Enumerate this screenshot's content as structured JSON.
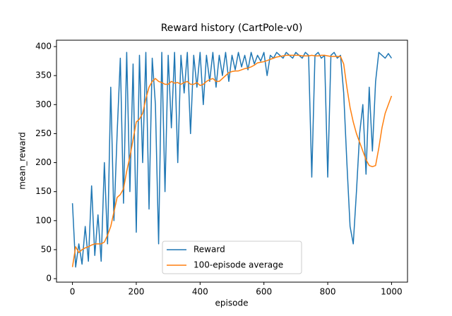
{
  "chart_data": {
    "type": "line",
    "title": "Reward history (CartPole-v0)",
    "xlabel": "episode",
    "ylabel": "mean_reward",
    "x": [
      0,
      10,
      20,
      30,
      40,
      50,
      60,
      70,
      80,
      90,
      100,
      110,
      120,
      130,
      140,
      150,
      160,
      170,
      180,
      190,
      200,
      210,
      220,
      230,
      240,
      250,
      260,
      270,
      280,
      290,
      300,
      310,
      320,
      330,
      340,
      350,
      360,
      370,
      380,
      390,
      400,
      410,
      420,
      430,
      440,
      450,
      460,
      470,
      480,
      490,
      500,
      510,
      520,
      530,
      540,
      550,
      560,
      570,
      580,
      590,
      600,
      610,
      620,
      630,
      640,
      650,
      660,
      670,
      680,
      690,
      700,
      710,
      720,
      730,
      740,
      750,
      760,
      770,
      780,
      790,
      800,
      810,
      820,
      830,
      840,
      850,
      860,
      870,
      880,
      890,
      900,
      910,
      920,
      930,
      940,
      950,
      960,
      970,
      980,
      990,
      1000
    ],
    "series": [
      {
        "name": "Reward",
        "color": "#1f77b4",
        "values": [
          130,
          20,
          60,
          25,
          90,
          30,
          160,
          40,
          110,
          30,
          200,
          60,
          330,
          100,
          250,
          380,
          130,
          390,
          150,
          370,
          80,
          385,
          200,
          390,
          120,
          380,
          300,
          60,
          390,
          150,
          385,
          260,
          390,
          200,
          385,
          320,
          390,
          250,
          385,
          330,
          390,
          300,
          385,
          340,
          390,
          330,
          385,
          350,
          390,
          340,
          385,
          360,
          390,
          365,
          385,
          360,
          390,
          370,
          385,
          375,
          390,
          350,
          385,
          380,
          390,
          385,
          380,
          390,
          385,
          380,
          390,
          385,
          380,
          390,
          385,
          175,
          385,
          390,
          380,
          385,
          175,
          385,
          390,
          380,
          385,
          320,
          200,
          90,
          60,
          150,
          250,
          300,
          180,
          330,
          220,
          340,
          390,
          385,
          380,
          388,
          380
        ]
      },
      {
        "name": "100-episode average",
        "color": "#ff7f0e",
        "values": [
          20,
          55,
          45,
          50,
          53,
          55,
          58,
          60,
          60,
          60,
          63,
          75,
          90,
          115,
          140,
          145,
          155,
          185,
          210,
          240,
          270,
          275,
          285,
          310,
          330,
          340,
          345,
          340,
          338,
          335,
          335,
          340,
          337,
          338,
          335,
          338,
          340,
          335,
          335,
          338,
          333,
          335,
          340,
          343,
          345,
          340,
          340,
          345,
          350,
          355,
          357,
          358,
          358,
          360,
          362,
          363,
          365,
          368,
          372,
          373,
          374,
          376,
          378,
          380,
          382,
          383,
          384,
          385,
          385,
          385,
          385,
          385,
          384,
          384,
          384,
          385,
          384,
          384,
          385,
          385,
          384,
          383,
          383,
          383,
          383,
          370,
          330,
          295,
          270,
          250,
          235,
          220,
          205,
          195,
          193,
          195,
          225,
          260,
          285,
          300,
          315
        ]
      }
    ],
    "xlim": [
      -50,
      1050
    ],
    "xticks": [
      0,
      200,
      400,
      600,
      800,
      1000
    ],
    "ylim": [
      -6,
      411
    ],
    "yticks": [
      0,
      50,
      100,
      150,
      200,
      250,
      300,
      350,
      400
    ],
    "legend_loc": "lower center"
  }
}
